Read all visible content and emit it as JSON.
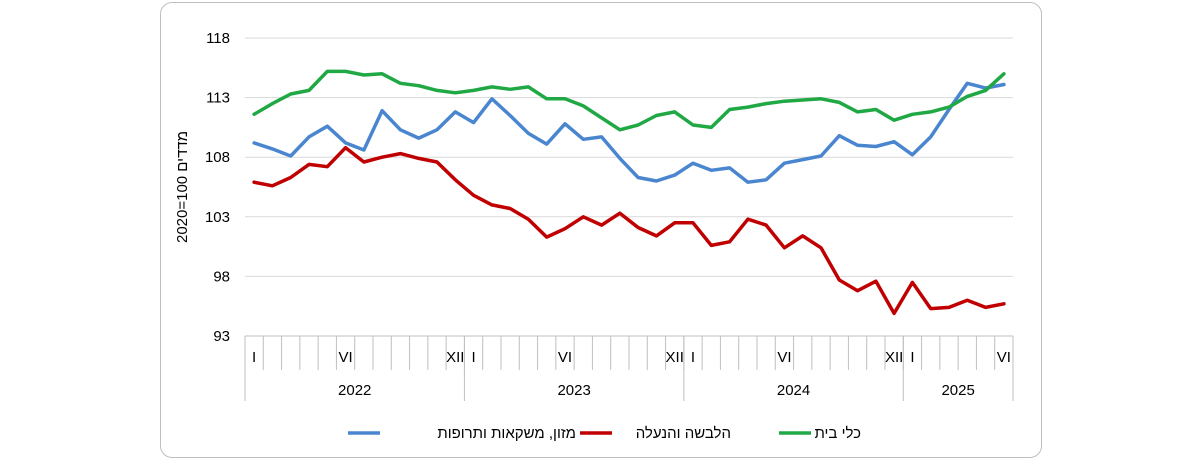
{
  "chart_data": {
    "type": "line",
    "ylabel": "2020=100  מדדים",
    "ylim": [
      93,
      118
    ],
    "yticks": [
      93,
      98,
      103,
      108,
      113,
      118
    ],
    "grid": true,
    "legend_position": "bottom",
    "month_labels": [
      {
        "index": 0,
        "label": "I"
      },
      {
        "index": 5,
        "label": "VI"
      },
      {
        "index": 11,
        "label": "XII"
      },
      {
        "index": 12,
        "label": "I"
      },
      {
        "index": 17,
        "label": "VI"
      },
      {
        "index": 23,
        "label": "XII"
      },
      {
        "index": 24,
        "label": "I"
      },
      {
        "index": 29,
        "label": "VI"
      },
      {
        "index": 35,
        "label": "XII"
      },
      {
        "index": 36,
        "label": "I"
      },
      {
        "index": 41,
        "label": "VI"
      }
    ],
    "years": [
      {
        "label": "2022",
        "months": 12
      },
      {
        "label": "2023",
        "months": 12
      },
      {
        "label": "2024",
        "months": 12
      },
      {
        "label": "2025",
        "months": 6
      }
    ],
    "series": [
      {
        "name": "מזון, משקאות ותרופות",
        "color": "#4a86cf",
        "values": [
          109.2,
          108.7,
          108.1,
          109.7,
          110.6,
          109.2,
          108.6,
          111.9,
          110.3,
          109.6,
          110.3,
          111.8,
          110.9,
          112.9,
          111.5,
          110.0,
          109.1,
          110.8,
          109.5,
          109.7,
          107.9,
          106.3,
          106.0,
          106.5,
          107.5,
          106.9,
          107.1,
          105.9,
          106.1,
          107.5,
          107.8,
          108.1,
          109.8,
          109.0,
          108.9,
          109.3,
          108.2,
          109.7,
          112.0,
          114.2,
          113.8,
          114.1
        ]
      },
      {
        "name": "הלבשה והנעלה",
        "color": "#c00000",
        "values": [
          105.9,
          105.6,
          106.3,
          107.4,
          107.2,
          108.8,
          107.6,
          108.0,
          108.3,
          107.9,
          107.6,
          106.1,
          104.8,
          104.0,
          103.7,
          102.8,
          101.3,
          102.0,
          103.0,
          102.3,
          103.3,
          102.1,
          101.4,
          102.5,
          102.5,
          100.6,
          100.9,
          102.8,
          102.3,
          100.4,
          101.4,
          100.4,
          97.7,
          96.8,
          97.6,
          94.9,
          97.5,
          95.3,
          95.4,
          96.0,
          95.4,
          95.7
        ]
      },
      {
        "name": "כלי בית",
        "color": "#20a845",
        "values": [
          111.6,
          112.5,
          113.3,
          113.6,
          115.2,
          115.2,
          114.9,
          115.0,
          114.2,
          114.0,
          113.6,
          113.4,
          113.6,
          113.9,
          113.7,
          113.9,
          112.9,
          112.9,
          112.3,
          111.3,
          110.3,
          110.7,
          111.5,
          111.8,
          110.7,
          110.5,
          112.0,
          112.2,
          112.5,
          112.7,
          112.8,
          112.9,
          112.6,
          111.8,
          112.0,
          111.1,
          111.6,
          111.8,
          112.2,
          113.1,
          113.6,
          115.0
        ]
      }
    ]
  }
}
